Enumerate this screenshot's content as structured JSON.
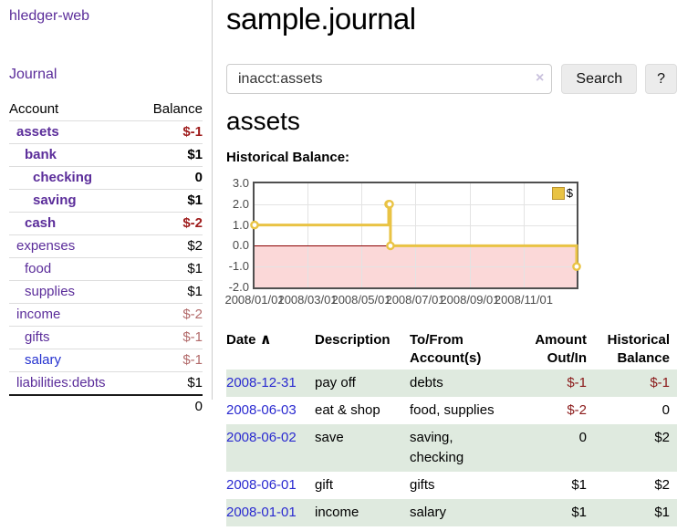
{
  "app": {
    "brand": "hledger-web",
    "nav_journal": "Journal"
  },
  "sidebar": {
    "columns": [
      "Account",
      "Balance"
    ],
    "rows": [
      {
        "account": "assets",
        "balance": "$-1",
        "level": 1,
        "bold": true,
        "unvisited": false
      },
      {
        "account": "bank",
        "balance": "$1",
        "level": 2,
        "bold": true,
        "unvisited": false
      },
      {
        "account": "checking",
        "balance": "0",
        "level": 3,
        "bold": true,
        "unvisited": false
      },
      {
        "account": "saving",
        "balance": "$1",
        "level": 3,
        "bold": true,
        "unvisited": false
      },
      {
        "account": "cash",
        "balance": "$-2",
        "level": 2,
        "bold": true,
        "unvisited": false
      },
      {
        "account": "expenses",
        "balance": "$2",
        "level": 1,
        "bold": false,
        "unvisited": false
      },
      {
        "account": "food",
        "balance": "$1",
        "level": 2,
        "bold": false,
        "unvisited": false
      },
      {
        "account": "supplies",
        "balance": "$1",
        "level": 2,
        "bold": false,
        "unvisited": false
      },
      {
        "account": "income",
        "balance": "$-2",
        "level": 1,
        "bold": false,
        "unvisited": false
      },
      {
        "account": "gifts",
        "balance": "$-1",
        "level": 2,
        "bold": false,
        "unvisited": false
      },
      {
        "account": "salary",
        "balance": "$-1",
        "level": 2,
        "bold": false,
        "unvisited": true
      },
      {
        "account": "liabilities:debts",
        "balance": "$1",
        "level": 1,
        "bold": false,
        "unvisited": false
      }
    ],
    "total": "0"
  },
  "main": {
    "title": "sample.journal",
    "search": {
      "value": "inacct:assets",
      "clear_icon": "×",
      "button": "Search",
      "help_button": "?"
    },
    "account_heading": "assets",
    "chart_label": "Historical Balance:"
  },
  "chart_data": {
    "type": "line",
    "title": "Historical Balance",
    "legend": "$",
    "steps": true,
    "series_color": "#e9c344",
    "marker_fill": "#ffffff",
    "negative_region_color": "#fbd8d8",
    "zero_line_color": "#8b0000",
    "ylim": [
      -2,
      3
    ],
    "y_ticks": [
      "3.0",
      "2.0",
      "1.0",
      "0.0",
      "-1.0",
      "-2.0"
    ],
    "x_ticks": [
      {
        "day": 0,
        "label": "2008/01/01"
      },
      {
        "day": 60,
        "label": "2008/03/01"
      },
      {
        "day": 121,
        "label": "2008/05/01"
      },
      {
        "day": 182,
        "label": "2008/07/01"
      },
      {
        "day": 244,
        "label": "2008/09/01"
      },
      {
        "day": 305,
        "label": "2008/11/01"
      }
    ],
    "xmax_days": 365,
    "points": [
      {
        "date": "2008-01-01",
        "day": 0,
        "value": 1
      },
      {
        "date": "2008-06-01",
        "day": 152,
        "value": 2
      },
      {
        "date": "2008-06-02",
        "day": 153,
        "value": 2
      },
      {
        "date": "2008-06-03",
        "day": 154,
        "value": 0
      },
      {
        "date": "2008-12-31",
        "day": 365,
        "value": -1
      }
    ]
  },
  "register": {
    "sort_icon": "∧",
    "headers": [
      "Date",
      "Description",
      "To/From Account(s)",
      "Amount Out/In",
      "Historical Balance"
    ],
    "rows": [
      {
        "date": "2008-12-31",
        "description": "pay off",
        "accounts": "debts",
        "amount": "$-1",
        "balance": "$-1"
      },
      {
        "date": "2008-06-03",
        "description": "eat & shop",
        "accounts": "food, supplies",
        "amount": "$-2",
        "balance": "0"
      },
      {
        "date": "2008-06-02",
        "description": "save",
        "accounts": "saving, checking",
        "amount": "0",
        "balance": "$2"
      },
      {
        "date": "2008-06-01",
        "description": "gift",
        "accounts": "gifts",
        "amount": "$1",
        "balance": "$2"
      },
      {
        "date": "2008-01-01",
        "description": "income",
        "accounts": "salary",
        "amount": "$1",
        "balance": "$1"
      }
    ]
  },
  "colors": {
    "link_purple": "#5b2d9a",
    "link_blue": "#2a2ad0",
    "negative_strong": "#9e1b1b",
    "negative_faded": "#b26a6a",
    "stripe_green": "#dfeadf",
    "series_gold": "#e9c344"
  }
}
